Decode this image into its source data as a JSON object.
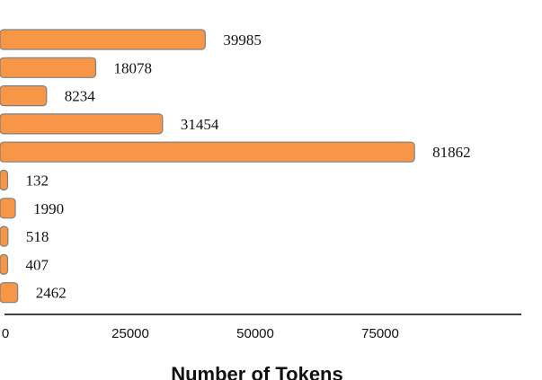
{
  "chart_data": {
    "type": "bar",
    "orientation": "horizontal",
    "values": [
      39985,
      18078,
      8234,
      31454,
      81862,
      132,
      1990,
      518,
      407,
      2462
    ],
    "value_labels": [
      "39985",
      "18078",
      "8234",
      "31454",
      "81862",
      "132",
      "1990",
      "518",
      "407",
      "2462"
    ],
    "xlabel": "Number of Tokens",
    "xlim": [
      0,
      100000
    ],
    "xticks": [
      0,
      25000,
      50000,
      75000
    ],
    "xtick_labels": [
      "0",
      "25000",
      "50000",
      "75000"
    ],
    "bar_color": "#f79646",
    "bar_edge_color": "#7f7f7f",
    "grid": false
  }
}
